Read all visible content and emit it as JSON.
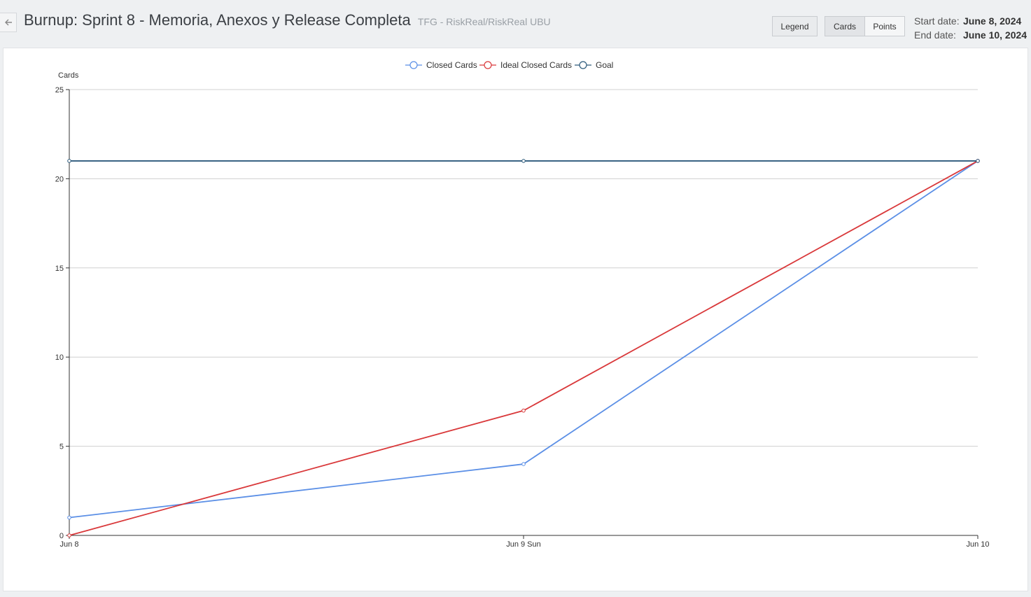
{
  "header": {
    "title": "Burnup: Sprint 8 - Memoria, Anexos y Release Completa",
    "subtitle": "TFG - RiskReal/RiskReal UBU",
    "legend_button": "Legend",
    "cards_button": "Cards",
    "points_button": "Points",
    "start_label": "Start date:",
    "start_value": "June 8, 2024",
    "end_label": "End date:",
    "end_value": "June 10, 2024"
  },
  "chart_data": {
    "type": "line",
    "ylabel": "Cards",
    "ylim": [
      0,
      25
    ],
    "yticks": [
      "0",
      "5",
      "10",
      "15",
      "20",
      "25"
    ],
    "categories": [
      "Jun 8",
      "Jun 9 Sun",
      "Jun 10"
    ],
    "legend_position": "top-center",
    "grid": true,
    "series": [
      {
        "name": "Closed Cards",
        "values": [
          1,
          4,
          21
        ],
        "color": "#5b8fe6"
      },
      {
        "name": "Ideal Closed Cards",
        "values": [
          0,
          7,
          21
        ],
        "color": "#d9383a"
      },
      {
        "name": "Goal",
        "values": [
          21,
          21,
          21
        ],
        "color": "#2d5a7b"
      }
    ]
  }
}
